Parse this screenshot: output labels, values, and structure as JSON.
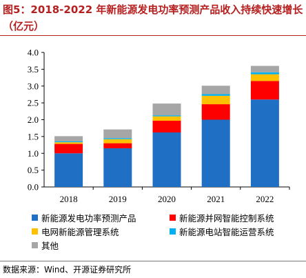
{
  "title": "图5：2018-2022 年新能源发电功率预测产品收入持续快速增长（亿元）",
  "source": "数据来源：Wind、开源证券研究所",
  "colors": {
    "title": "#b51f1f",
    "axis": "#000000"
  },
  "chart_data": {
    "type": "bar",
    "stacked": true,
    "title": "",
    "xlabel": "",
    "ylabel": "",
    "ylim": [
      0,
      4.0
    ],
    "yticks": [
      "0.0",
      "0.5",
      "1.0",
      "1.5",
      "2.0",
      "2.5",
      "3.0",
      "3.5",
      "4.0"
    ],
    "grid": false,
    "legend_position": "bottom",
    "categories": [
      "2018",
      "2019",
      "2020",
      "2021",
      "2022"
    ],
    "series": [
      {
        "name": "新能源发电功率预测产品",
        "color": "#1f6fc5",
        "values": [
          1.0,
          1.15,
          1.62,
          2.0,
          2.6
        ]
      },
      {
        "name": "新能源并网智能控制系统",
        "color": "#ff0000",
        "values": [
          0.28,
          0.15,
          0.35,
          0.46,
          0.55
        ]
      },
      {
        "name": "电网新能源管理系统",
        "color": "#ffc000",
        "values": [
          0.05,
          0.12,
          0.13,
          0.25,
          0.2
        ]
      },
      {
        "name": "新能源电站智能运营系统",
        "color": "#00b0f0",
        "values": [
          0.03,
          0.03,
          0.03,
          0.05,
          0.06
        ]
      },
      {
        "name": "其他",
        "color": "#a6a6a6",
        "values": [
          0.15,
          0.26,
          0.35,
          0.25,
          0.19
        ]
      }
    ]
  }
}
